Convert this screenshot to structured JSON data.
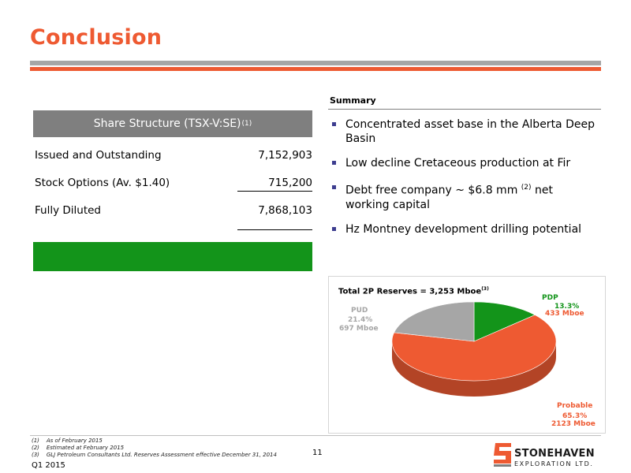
{
  "title": "Conclusion",
  "share_structure": {
    "header": "Share Structure (TSX-V:SE)",
    "header_note": "(1)",
    "rows": [
      {
        "label": "Issued and Outstanding",
        "value": "7,152,903"
      },
      {
        "label": "Stock Options (Av. $1.40)",
        "value": "715,200"
      },
      {
        "label": "Fully Diluted",
        "value": "7,868,103"
      }
    ]
  },
  "summary": {
    "heading": "Summary",
    "bullets": [
      {
        "text": "Concentrated asset base in the Alberta Deep Basin"
      },
      {
        "text": "Low decline Cretaceous production at Fir"
      },
      {
        "pre": "Debt free company ~ $6.8 mm ",
        "note": "(2)",
        "post": " net working capital"
      },
      {
        "text": "Hz Montney development drilling potential"
      }
    ]
  },
  "chart_data": {
    "type": "pie",
    "title": "Total 2P Reserves = 3,253 Mboe",
    "title_note": "(3)",
    "slices": [
      {
        "name": "PDP",
        "pct_label": "13.3%",
        "value_label": "433 Mboe",
        "value": 433,
        "color": "#13941a"
      },
      {
        "name": "Probable",
        "pct_label": "65.3%",
        "value_label": "2123 Mboe",
        "value": 2123,
        "color": "#ee5a32"
      },
      {
        "name": "PUD",
        "pct_label": "21.4%",
        "value_label": "697 Mboe",
        "value": 697,
        "color": "#a6a6a6"
      }
    ]
  },
  "footnotes": [
    "(1)    As of February 2015",
    "(2)    Estimated at February 2015",
    "(3)    GLJ Petroleum Consultants Ltd. Reserves Assessment effective December 31, 2014"
  ],
  "page_number": "11",
  "quarter": "Q1 2015",
  "logo": {
    "name": "STONEHAVEN",
    "sub": "EXPLORATION LTD."
  },
  "colors": {
    "accent": "#ee5a32",
    "green": "#13941a",
    "gray": "#a6a6a6"
  }
}
